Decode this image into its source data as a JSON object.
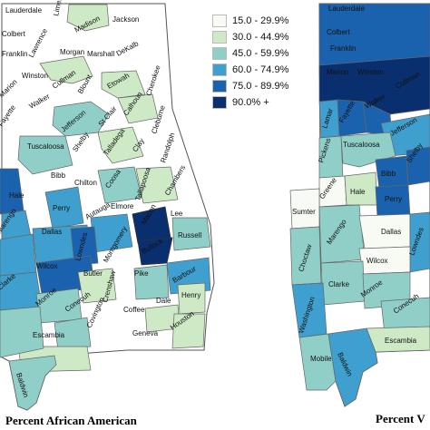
{
  "legend": {
    "items": [
      {
        "label": "15.0 - 29.9%",
        "color": "#f7fbf3"
      },
      {
        "label": "30.0 - 44.9%",
        "color": "#cde9c5"
      },
      {
        "label": "45.0 - 59.9%",
        "color": "#8fcfc8"
      },
      {
        "label": "60.0 - 74.9%",
        "color": "#3f9fce"
      },
      {
        "label": "75.0 - 89.9%",
        "color": "#1a62ad"
      },
      {
        "label": "90.0% +",
        "color": "#0a2f6e"
      }
    ]
  },
  "left_map": {
    "caption": "Percent African American",
    "counties": [
      "Lauderdale",
      "Limestone",
      "Madison",
      "Jackson",
      "Colbert",
      "Lawrence",
      "Morgan",
      "Franklin",
      "Marshall",
      "DeKalb",
      "Winston",
      "Cullman",
      "Etowah",
      "Cherokee",
      "Marion",
      "Blount",
      "Walker",
      "Calhoun",
      "Fayette",
      "Jefferson",
      "St Clair",
      "Cleburne",
      "Talladega",
      "Tuscaloosa",
      "Shelby",
      "Clay",
      "Randolph",
      "Bibb",
      "Hale",
      "Chilton",
      "Coosa",
      "Tallapoosa",
      "Chambers",
      "Perry",
      "Autauga",
      "Elmore",
      "Lee",
      "Dallas",
      "Macon",
      "Marengo",
      "Lowndes",
      "Russell",
      "Montgomery",
      "Bullock",
      "Wilcox",
      "Butler",
      "Pike",
      "Barbour",
      "Monroe",
      "Conecuh",
      "Crenshaw",
      "Dale",
      "Henry",
      "Clarke",
      "Escambia",
      "Covington",
      "Coffee",
      "Houston",
      "Geneva",
      "Baldwin"
    ]
  },
  "right_map": {
    "caption": "Percent V",
    "counties": [
      "Lauderdale",
      "Colbert",
      "Franklin",
      "Marion",
      "Winston",
      "Cullman",
      "Walker",
      "Lamar",
      "Fayette",
      "Jefferson",
      "Pickens",
      "Tuscaloosa",
      "Shelby",
      "Bibb",
      "Greene",
      "Hale",
      "Sumter",
      "Perry",
      "Dallas",
      "Marengo",
      "Lowndes",
      "Choctaw",
      "Wilcox",
      "Clarke",
      "Monroe",
      "Washington",
      "Conecuh",
      "Mobile",
      "Baldwin",
      "Escambia"
    ]
  }
}
